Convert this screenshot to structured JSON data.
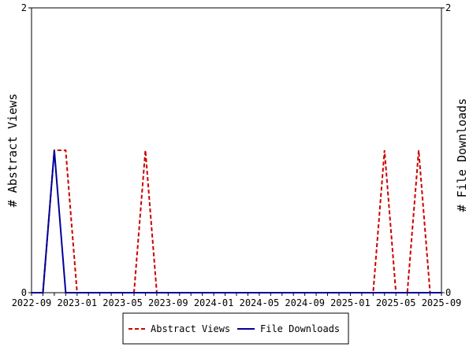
{
  "chart_data": {
    "type": "line",
    "ylabel": "# Abstract Views",
    "y2label": "# File Downloads",
    "ylim": [
      0,
      2
    ],
    "y2lim": [
      0,
      2
    ],
    "y_ticks": [
      "0",
      "2"
    ],
    "y2_ticks": [
      "0",
      "2"
    ],
    "xlim": [
      "2022-09",
      "2025-09"
    ],
    "x_tick_labels": [
      "2022-09",
      "2023-01",
      "2023-05",
      "2023-09",
      "2024-01",
      "2024-05",
      "2024-09",
      "2025-01",
      "2025-05",
      "2025-09"
    ],
    "x": [
      "2022-09",
      "2022-10",
      "2022-11",
      "2022-12",
      "2023-01",
      "2023-02",
      "2023-03",
      "2023-04",
      "2023-05",
      "2023-06",
      "2023-07",
      "2023-08",
      "2023-09",
      "2023-10",
      "2023-11",
      "2023-12",
      "2024-01",
      "2024-02",
      "2024-03",
      "2024-04",
      "2024-05",
      "2024-06",
      "2024-07",
      "2024-08",
      "2024-09",
      "2024-10",
      "2024-11",
      "2024-12",
      "2025-01",
      "2025-02",
      "2025-03",
      "2025-04",
      "2025-05",
      "2025-06",
      "2025-07",
      "2025-08",
      "2025-09"
    ],
    "series": [
      {
        "name": "Abstract Views",
        "color": "#cc0000",
        "style": "dashed",
        "axis": "left",
        "values": [
          0,
          0,
          1,
          1,
          0,
          0,
          0,
          0,
          0,
          0,
          1,
          0,
          0,
          0,
          0,
          0,
          0,
          0,
          0,
          0,
          0,
          0,
          0,
          0,
          0,
          0,
          0,
          0,
          0,
          0,
          0,
          1,
          0,
          0,
          1,
          0,
          0
        ]
      },
      {
        "name": "File Downloads",
        "color": "#000099",
        "style": "solid",
        "axis": "right",
        "values": [
          0,
          0,
          1,
          0,
          0,
          0,
          0,
          0,
          0,
          0,
          0,
          0,
          0,
          0,
          0,
          0,
          0,
          0,
          0,
          0,
          0,
          0,
          0,
          0,
          0,
          0,
          0,
          0,
          0,
          0,
          0,
          0,
          0,
          0,
          0,
          0,
          0
        ]
      }
    ],
    "legend_position": "bottom",
    "grid": false
  }
}
